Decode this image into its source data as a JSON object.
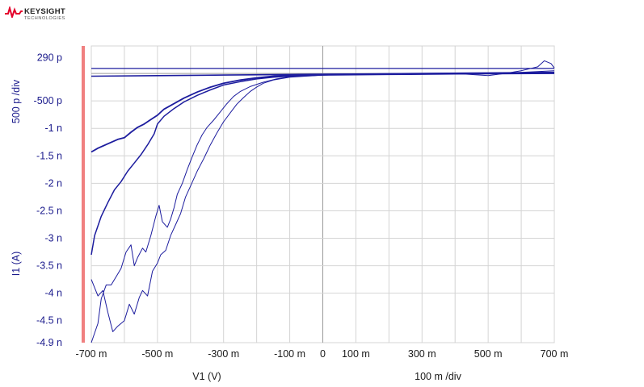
{
  "logo": {
    "brand": "KEYSIGHT",
    "sub": "TECHNOLOGIES"
  },
  "chart_data": {
    "type": "line",
    "xlabel": "V1 (V)",
    "ylabel": "I1 (A)",
    "xscale_label": "100 m /div",
    "yscale_label": "500 p /div",
    "xlim": [
      -0.7,
      0.7
    ],
    "ylim": [
      -4.9e-09,
      2.9e-10
    ],
    "grid": true,
    "x_ticks": [
      {
        "v": -0.7,
        "label": "-700 m"
      },
      {
        "v": -0.5,
        "label": "-500 m"
      },
      {
        "v": -0.3,
        "label": "-300 m"
      },
      {
        "v": -0.1,
        "label": "-100 m"
      },
      {
        "v": 0.0,
        "label": "0"
      },
      {
        "v": 0.1,
        "label": "100 m"
      },
      {
        "v": 0.3,
        "label": "300 m"
      },
      {
        "v": 0.5,
        "label": "500 m"
      },
      {
        "v": 0.7,
        "label": "700 m"
      }
    ],
    "y_ticks": [
      {
        "v": 2.9e-10,
        "label": "290 p"
      },
      {
        "v": -5e-10,
        "label": "-500 p"
      },
      {
        "v": -1e-09,
        "label": "-1 n"
      },
      {
        "v": -1.5e-09,
        "label": "-1.5 n"
      },
      {
        "v": -2e-09,
        "label": "-2 n"
      },
      {
        "v": -2.5e-09,
        "label": "-2.5 n"
      },
      {
        "v": -3e-09,
        "label": "-3 n"
      },
      {
        "v": -3.5e-09,
        "label": "-3.5 n"
      },
      {
        "v": -4e-09,
        "label": "-4 n"
      },
      {
        "v": -4.5e-09,
        "label": "-4.5 n"
      },
      {
        "v": -4.9e-09,
        "label": "-4.9 n"
      }
    ],
    "colors": {
      "trace": "#1c1c9e",
      "grid": "#d4d4d4",
      "zero_axis": "#9a9a9a",
      "marker": "#f08080"
    },
    "series": [
      {
        "width": 1.6,
        "points": [
          [
            -0.7,
            -5e-11
          ],
          [
            -0.5,
            -4e-11
          ],
          [
            -0.3,
            -3e-11
          ],
          [
            -0.1,
            -2e-11
          ],
          [
            0.1,
            -1e-11
          ],
          [
            0.3,
            0.0
          ],
          [
            0.5,
            1e-11
          ],
          [
            0.7,
            2e-11
          ]
        ]
      },
      {
        "width": 1.3,
        "points": [
          [
            -0.7,
            9e-11
          ],
          [
            -0.5,
            9e-11
          ],
          [
            -0.3,
            9e-11
          ],
          [
            -0.1,
            9e-11
          ],
          [
            0.1,
            9e-11
          ],
          [
            0.3,
            9e-11
          ],
          [
            0.5,
            9e-11
          ],
          [
            0.7,
            9e-11
          ]
        ]
      },
      {
        "width": 1.8,
        "points": [
          [
            -0.7,
            -1.43e-09
          ],
          [
            -0.68,
            -1.36e-09
          ],
          [
            -0.65,
            -1.28e-09
          ],
          [
            -0.62,
            -1.2e-09
          ],
          [
            -0.6,
            -1.17e-09
          ],
          [
            -0.58,
            -1.07e-09
          ],
          [
            -0.56,
            -9.8e-10
          ],
          [
            -0.54,
            -9.2e-10
          ],
          [
            -0.52,
            -8.4e-10
          ],
          [
            -0.5,
            -7.6e-10
          ],
          [
            -0.48,
            -6.5e-10
          ],
          [
            -0.45,
            -5.5e-10
          ],
          [
            -0.42,
            -4.5e-10
          ],
          [
            -0.38,
            -3.4e-10
          ],
          [
            -0.34,
            -2.5e-10
          ],
          [
            -0.3,
            -1.8e-10
          ],
          [
            -0.25,
            -1.2e-10
          ],
          [
            -0.2,
            -8e-11
          ],
          [
            -0.15,
            -5e-11
          ],
          [
            -0.1,
            -3e-11
          ],
          [
            0.0,
            -2e-11
          ],
          [
            0.2,
            -1e-11
          ],
          [
            0.4,
            0.0
          ],
          [
            0.6,
            0.0
          ],
          [
            0.7,
            1e-11
          ]
        ]
      },
      {
        "width": 1.5,
        "points": [
          [
            -0.7,
            -3.3e-09
          ],
          [
            -0.69,
            -2.95e-09
          ],
          [
            -0.67,
            -2.6e-09
          ],
          [
            -0.65,
            -2.35e-09
          ],
          [
            -0.63,
            -2.12e-09
          ],
          [
            -0.61,
            -1.97e-09
          ],
          [
            -0.59,
            -1.78e-09
          ],
          [
            -0.57,
            -1.63e-09
          ],
          [
            -0.55,
            -1.48e-09
          ],
          [
            -0.53,
            -1.3e-09
          ],
          [
            -0.51,
            -1.1e-09
          ],
          [
            -0.5,
            -9.2e-10
          ],
          [
            -0.48,
            -7.8e-10
          ],
          [
            -0.45,
            -6.4e-10
          ],
          [
            -0.42,
            -5.2e-10
          ],
          [
            -0.38,
            -4e-10
          ],
          [
            -0.34,
            -3e-10
          ],
          [
            -0.3,
            -2.1e-10
          ],
          [
            -0.25,
            -1.5e-10
          ],
          [
            -0.2,
            -1e-10
          ],
          [
            -0.15,
            -7e-11
          ],
          [
            -0.1,
            -5e-11
          ],
          [
            0.0,
            -3e-11
          ],
          [
            0.2,
            -2e-11
          ],
          [
            0.4,
            -1e-11
          ],
          [
            0.7,
            0.0
          ]
        ]
      },
      {
        "width": 1.0,
        "points": [
          [
            -0.7,
            -3.75e-09
          ],
          [
            -0.68,
            -4.05e-09
          ],
          [
            -0.665,
            -3.95e-09
          ],
          [
            -0.65,
            -4.35e-09
          ],
          [
            -0.635,
            -4.7e-09
          ],
          [
            -0.62,
            -4.6e-09
          ],
          [
            -0.6,
            -4.5e-09
          ],
          [
            -0.585,
            -4.2e-09
          ],
          [
            -0.57,
            -4.38e-09
          ],
          [
            -0.555,
            -4.08e-09
          ],
          [
            -0.545,
            -3.95e-09
          ],
          [
            -0.53,
            -4.05e-09
          ],
          [
            -0.515,
            -3.6e-09
          ],
          [
            -0.5,
            -3.45e-09
          ],
          [
            -0.49,
            -3.3e-09
          ],
          [
            -0.475,
            -3.22e-09
          ],
          [
            -0.46,
            -2.95e-09
          ],
          [
            -0.445,
            -2.75e-09
          ],
          [
            -0.43,
            -2.55e-09
          ],
          [
            -0.415,
            -2.25e-09
          ],
          [
            -0.4,
            -2.05e-09
          ],
          [
            -0.38,
            -1.78e-09
          ],
          [
            -0.36,
            -1.55e-09
          ],
          [
            -0.34,
            -1.3e-09
          ],
          [
            -0.32,
            -1.08e-09
          ],
          [
            -0.3,
            -8.8e-10
          ],
          [
            -0.28,
            -7.2e-10
          ],
          [
            -0.26,
            -5.6e-10
          ],
          [
            -0.24,
            -4.4e-10
          ],
          [
            -0.22,
            -3.3e-10
          ],
          [
            -0.2,
            -2.5e-10
          ],
          [
            -0.18,
            -1.8e-10
          ],
          [
            -0.15,
            -1.2e-10
          ],
          [
            -0.1,
            -7e-11
          ],
          [
            0.0,
            -3e-11
          ],
          [
            0.2,
            -1e-11
          ],
          [
            0.4,
            0.0
          ],
          [
            0.55,
            0.0
          ],
          [
            0.6,
            5e-11
          ],
          [
            0.65,
            1.2e-10
          ],
          [
            0.67,
            2.3e-10
          ],
          [
            0.69,
            1.8e-10
          ],
          [
            0.7,
            1e-10
          ]
        ]
      },
      {
        "width": 1.0,
        "points": [
          [
            -0.7,
            -4.9e-09
          ],
          [
            -0.68,
            -4.55e-09
          ],
          [
            -0.67,
            -4.1e-09
          ],
          [
            -0.655,
            -3.85e-09
          ],
          [
            -0.64,
            -3.85e-09
          ],
          [
            -0.625,
            -3.7e-09
          ],
          [
            -0.61,
            -3.55e-09
          ],
          [
            -0.595,
            -3.25e-09
          ],
          [
            -0.58,
            -3.12e-09
          ],
          [
            -0.57,
            -3.5e-09
          ],
          [
            -0.56,
            -3.35e-09
          ],
          [
            -0.545,
            -3.18e-09
          ],
          [
            -0.535,
            -3.25e-09
          ],
          [
            -0.52,
            -2.95e-09
          ],
          [
            -0.505,
            -2.6e-09
          ],
          [
            -0.495,
            -2.4e-09
          ],
          [
            -0.485,
            -2.7e-09
          ],
          [
            -0.47,
            -2.8e-09
          ],
          [
            -0.46,
            -2.65e-09
          ],
          [
            -0.45,
            -2.45e-09
          ],
          [
            -0.44,
            -2.2e-09
          ],
          [
            -0.425,
            -2e-09
          ],
          [
            -0.41,
            -1.75e-09
          ],
          [
            -0.395,
            -1.52e-09
          ],
          [
            -0.38,
            -1.3e-09
          ],
          [
            -0.365,
            -1.12e-09
          ],
          [
            -0.35,
            -9.8e-10
          ],
          [
            -0.33,
            -8.5e-10
          ],
          [
            -0.31,
            -7e-10
          ],
          [
            -0.29,
            -5.5e-10
          ],
          [
            -0.27,
            -4.2e-10
          ],
          [
            -0.25,
            -3.3e-10
          ],
          [
            -0.22,
            -2.4e-10
          ],
          [
            -0.18,
            -1.6e-10
          ],
          [
            -0.14,
            -1e-10
          ],
          [
            -0.1,
            -6e-11
          ],
          [
            0.0,
            -3e-11
          ],
          [
            0.2,
            -1e-11
          ],
          [
            0.4,
            0.0
          ],
          [
            0.5,
            -4e-11
          ],
          [
            0.55,
            0.0
          ],
          [
            0.6,
            2e-11
          ],
          [
            0.7,
            5e-11
          ]
        ]
      }
    ]
  }
}
